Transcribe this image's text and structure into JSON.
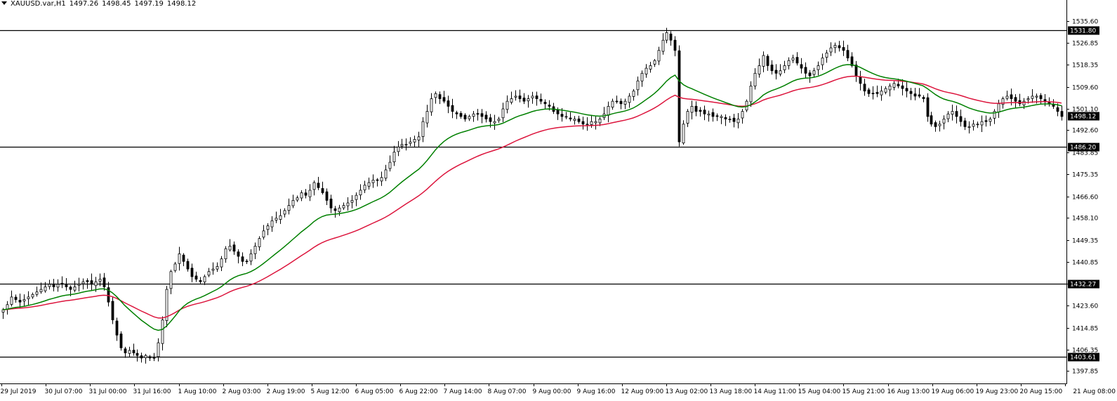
{
  "header": {
    "symbol": "XAUUSD.var,H1",
    "open": "1497.26",
    "high": "1498.45",
    "low": "1497.19",
    "close": "1498.12"
  },
  "colors": {
    "background": "#ffffff",
    "candle": "#000000",
    "ma_fast": "#008000",
    "ma_slow": "#dc143c",
    "hline": "#000000",
    "price_marker_bg": "#000000"
  },
  "chart_data": {
    "type": "candlestick",
    "title": "XAUUSD.var,H1",
    "ylim": [
      1393.0,
      1540.5
    ],
    "y_ticks": [
      "1535.60",
      "1526.85",
      "1518.35",
      "1509.60",
      "1501.10",
      "1492.60",
      "1483.85",
      "1475.35",
      "1466.60",
      "1458.10",
      "1449.35",
      "1440.85",
      "1432.27",
      "1423.60",
      "1414.85",
      "1406.35",
      "1397.85"
    ],
    "x_ticks": [
      "29 Jul 2019",
      "30 Jul 07:00",
      "31 Jul 00:00",
      "31 Jul 16:00",
      "1 Aug 10:00",
      "2 Aug 03:00",
      "2 Aug 19:00",
      "5 Aug 12:00",
      "6 Aug 05:00",
      "6 Aug 22:00",
      "7 Aug 14:00",
      "8 Aug 07:00",
      "9 Aug 00:00",
      "9 Aug 16:00",
      "12 Aug 09:00",
      "13 Aug 02:00",
      "13 Aug 18:00",
      "14 Aug 11:00",
      "15 Aug 04:00",
      "15 Aug 21:00",
      "16 Aug 13:00",
      "19 Aug 06:00",
      "19 Aug 23:00",
      "20 Aug 15:00",
      "21 Aug 08:00"
    ],
    "horizontal_levels": [
      {
        "value": 1531.8,
        "label": "1531.80"
      },
      {
        "value": 1486.2,
        "label": "1486.20"
      },
      {
        "value": 1432.27,
        "label": "1432.27"
      },
      {
        "value": 1403.61,
        "label": "1403.61"
      }
    ],
    "current_price": {
      "value": 1498.12,
      "label": "1498.12"
    },
    "closes": [
      1422,
      1424,
      1427,
      1426,
      1425,
      1426,
      1427,
      1428,
      1429,
      1430,
      1431,
      1432,
      1431,
      1432,
      1432,
      1431,
      1430,
      1431,
      1432,
      1433,
      1433,
      1432,
      1433,
      1434,
      1431,
      1425,
      1418,
      1412,
      1407,
      1405,
      1406,
      1405,
      1404,
      1403,
      1404,
      1403,
      1403,
      1409,
      1418,
      1430,
      1437,
      1440,
      1444,
      1441,
      1438,
      1435,
      1434,
      1433,
      1435,
      1437,
      1438,
      1439,
      1442,
      1446,
      1447,
      1445,
      1443,
      1441,
      1441,
      1444,
      1447,
      1450,
      1453,
      1455,
      1457,
      1458,
      1459,
      1461,
      1463,
      1465,
      1466,
      1468,
      1467,
      1469,
      1472,
      1470,
      1468,
      1465,
      1462,
      1461,
      1462,
      1463,
      1464,
      1465,
      1467,
      1469,
      1471,
      1472,
      1473,
      1473,
      1474,
      1477,
      1480,
      1484,
      1486,
      1487,
      1487,
      1488,
      1489,
      1490,
      1496,
      1500,
      1505,
      1507,
      1505,
      1504,
      1502,
      1500,
      1499,
      1498,
      1497,
      1498,
      1499,
      1499,
      1498,
      1497,
      1496,
      1496,
      1497,
      1501,
      1504,
      1505,
      1506,
      1505,
      1504,
      1505,
      1506,
      1505,
      1504,
      1503,
      1502,
      1500,
      1499,
      1498,
      1498,
      1497,
      1497,
      1496,
      1495,
      1495,
      1496,
      1496,
      1497,
      1499,
      1502,
      1504,
      1504,
      1503,
      1504,
      1506,
      1508,
      1512,
      1515,
      1517,
      1518,
      1520,
      1524,
      1528,
      1531,
      1528,
      1524,
      1488,
      1495,
      1500,
      1502,
      1500,
      1500,
      1499,
      1499,
      1498,
      1498,
      1498,
      1497,
      1497,
      1496,
      1497,
      1500,
      1504,
      1510,
      1515,
      1518,
      1522,
      1518,
      1516,
      1515,
      1516,
      1518,
      1520,
      1521,
      1519,
      1517,
      1515,
      1514,
      1516,
      1518,
      1521,
      1523,
      1525,
      1526,
      1525,
      1524,
      1521,
      1518,
      1514,
      1511,
      1508,
      1507,
      1507,
      1507,
      1508,
      1509,
      1510,
      1511,
      1510,
      1509,
      1508,
      1507,
      1506,
      1506,
      1505,
      1498,
      1495,
      1494,
      1495,
      1497,
      1499,
      1500,
      1498,
      1496,
      1494,
      1494,
      1495,
      1495,
      1496,
      1496,
      1497,
      1500,
      1503,
      1505,
      1506,
      1505,
      1504,
      1503,
      1504,
      1505,
      1506,
      1506,
      1505,
      1504,
      1503,
      1502,
      1500,
      1498
    ]
  }
}
